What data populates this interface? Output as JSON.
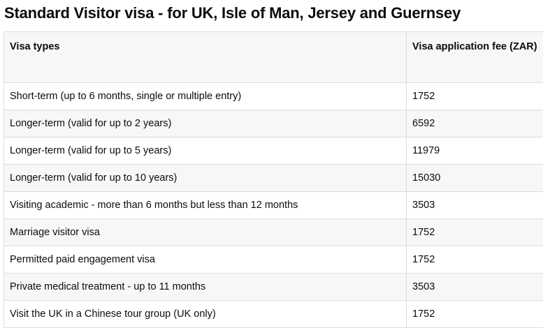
{
  "header": {
    "title": "Standard Visitor visa - for UK, Isle of Man, Jersey and Guernsey"
  },
  "table": {
    "columns": [
      "Visa types",
      "Visa application fee (ZAR)"
    ],
    "rows": [
      [
        "Short-term (up to 6 months, single or multiple entry)",
        1752
      ],
      [
        "Longer-term (valid for up to 2 years)",
        6592
      ],
      [
        "Longer-term (valid for up to 5 years)",
        11979
      ],
      [
        "Longer-term (valid for up to 10 years)",
        15030
      ],
      [
        "Visiting academic - more than 6 months but less than 12 months",
        3503
      ],
      [
        "Marriage visitor visa",
        1752
      ],
      [
        "Permitted paid engagement visa",
        1752
      ],
      [
        "Private medical treatment - up to 11 months",
        3503
      ],
      [
        "Visit the UK in a Chinese tour group (UK only)",
        1752
      ]
    ]
  }
}
